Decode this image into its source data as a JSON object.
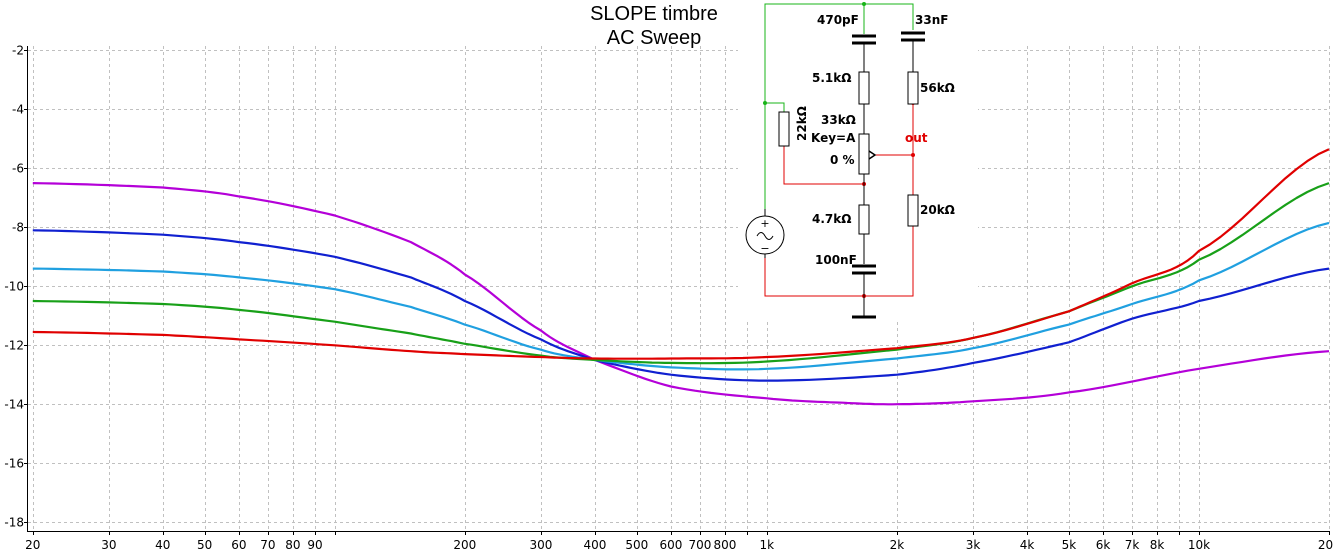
{
  "chart_data": {
    "type": "line",
    "title": [
      "SLOPE timbre",
      "AC Sweep"
    ],
    "x_scale": "log",
    "xlim": [
      19.5,
      20000
    ],
    "ylim": [
      -18.3,
      -1.85
    ],
    "grid": true,
    "xticks": [
      {
        "v": 20,
        "label": "20"
      },
      {
        "v": 30,
        "label": "30"
      },
      {
        "v": 40,
        "label": "40"
      },
      {
        "v": 50,
        "label": "50"
      },
      {
        "v": 60,
        "label": "60"
      },
      {
        "v": 70,
        "label": "70"
      },
      {
        "v": 80,
        "label": "80"
      },
      {
        "v": 90,
        "label": "90"
      },
      {
        "v": 200,
        "label": "200"
      },
      {
        "v": 300,
        "label": "300"
      },
      {
        "v": 400,
        "label": "400"
      },
      {
        "v": 500,
        "label": "500"
      },
      {
        "v": 600,
        "label": "600"
      },
      {
        "v": 700,
        "label": "700"
      },
      {
        "v": 800,
        "label": "800"
      },
      {
        "v": 1000,
        "label": "1k"
      },
      {
        "v": 2000,
        "label": "2k"
      },
      {
        "v": 3000,
        "label": "3k"
      },
      {
        "v": 4000,
        "label": "4k"
      },
      {
        "v": 5000,
        "label": "5k"
      },
      {
        "v": 6000,
        "label": "6k"
      },
      {
        "v": 7000,
        "label": "7k"
      },
      {
        "v": 8000,
        "label": "8k"
      },
      {
        "v": 10000,
        "label": "10k"
      },
      {
        "v": 20000,
        "label": "20k"
      }
    ],
    "xgrid": [
      20,
      30,
      40,
      50,
      60,
      70,
      80,
      90,
      100,
      200,
      300,
      400,
      500,
      600,
      700,
      800,
      900,
      1000,
      2000,
      3000,
      4000,
      5000,
      6000,
      7000,
      8000,
      9000,
      10000,
      20000
    ],
    "yticks": [
      -2,
      -4,
      -6,
      -8,
      -10,
      -12,
      -14,
      -16,
      -18
    ],
    "series": [
      {
        "color": "#b400d8",
        "x": [
          20,
          40,
          60,
          100,
          150,
          200,
          300,
          400,
          600,
          1000,
          1500,
          2000,
          3000,
          5000,
          10000,
          20000
        ],
        "y": [
          -6.5,
          -6.65,
          -6.95,
          -7.6,
          -8.5,
          -9.6,
          -11.5,
          -12.5,
          -13.4,
          -13.8,
          -13.95,
          -14.0,
          -13.9,
          -13.6,
          -12.8,
          -12.2
        ]
      },
      {
        "color": "#1020d0",
        "x": [
          20,
          40,
          60,
          100,
          150,
          200,
          300,
          400,
          600,
          1000,
          2000,
          3000,
          5000,
          7000,
          10000,
          20000
        ],
        "y": [
          -8.1,
          -8.25,
          -8.5,
          -9.0,
          -9.7,
          -10.5,
          -11.8,
          -12.5,
          -13.0,
          -13.2,
          -13.0,
          -12.6,
          -11.9,
          -11.1,
          -10.5,
          -9.4
        ]
      },
      {
        "color": "#20a0e0",
        "x": [
          20,
          40,
          60,
          100,
          150,
          200,
          300,
          400,
          600,
          1000,
          2000,
          3000,
          5000,
          7000,
          10000,
          20000
        ],
        "y": [
          -9.4,
          -9.5,
          -9.7,
          -10.1,
          -10.7,
          -11.3,
          -12.15,
          -12.5,
          -12.75,
          -12.8,
          -12.45,
          -12.1,
          -11.3,
          -10.6,
          -9.8,
          -7.85
        ]
      },
      {
        "color": "#18a018",
        "x": [
          20,
          40,
          60,
          100,
          150,
          200,
          300,
          400,
          600,
          1000,
          2000,
          3000,
          5000,
          7000,
          10000,
          20000
        ],
        "y": [
          -10.5,
          -10.6,
          -10.8,
          -11.2,
          -11.6,
          -11.95,
          -12.35,
          -12.5,
          -12.6,
          -12.55,
          -12.15,
          -11.75,
          -10.85,
          -10.0,
          -9.1,
          -6.5
        ]
      },
      {
        "color": "#e00000",
        "x": [
          20,
          40,
          60,
          100,
          150,
          200,
          300,
          400,
          600,
          1000,
          2000,
          3000,
          5000,
          7000,
          10000,
          20000
        ],
        "y": [
          -11.55,
          -11.65,
          -11.8,
          -12.0,
          -12.2,
          -12.3,
          -12.4,
          -12.45,
          -12.45,
          -12.4,
          -12.1,
          -11.75,
          -10.85,
          -9.9,
          -8.8,
          -5.35
        ]
      }
    ]
  },
  "schematic": {
    "labels": {
      "c1": "470pF",
      "c2": "33nF",
      "r1": "5.1kΩ",
      "r2": "56kΩ",
      "r3": "22kΩ",
      "pot": "33kΩ",
      "pot_key": "Key=A",
      "pot_pos": "0 %",
      "out": "out",
      "r4": "20kΩ",
      "r5": "4.7kΩ",
      "c3": "100nF"
    },
    "colors": {
      "wire_green": "#18b418",
      "wire_red": "#e00000",
      "component": "#000000"
    }
  }
}
